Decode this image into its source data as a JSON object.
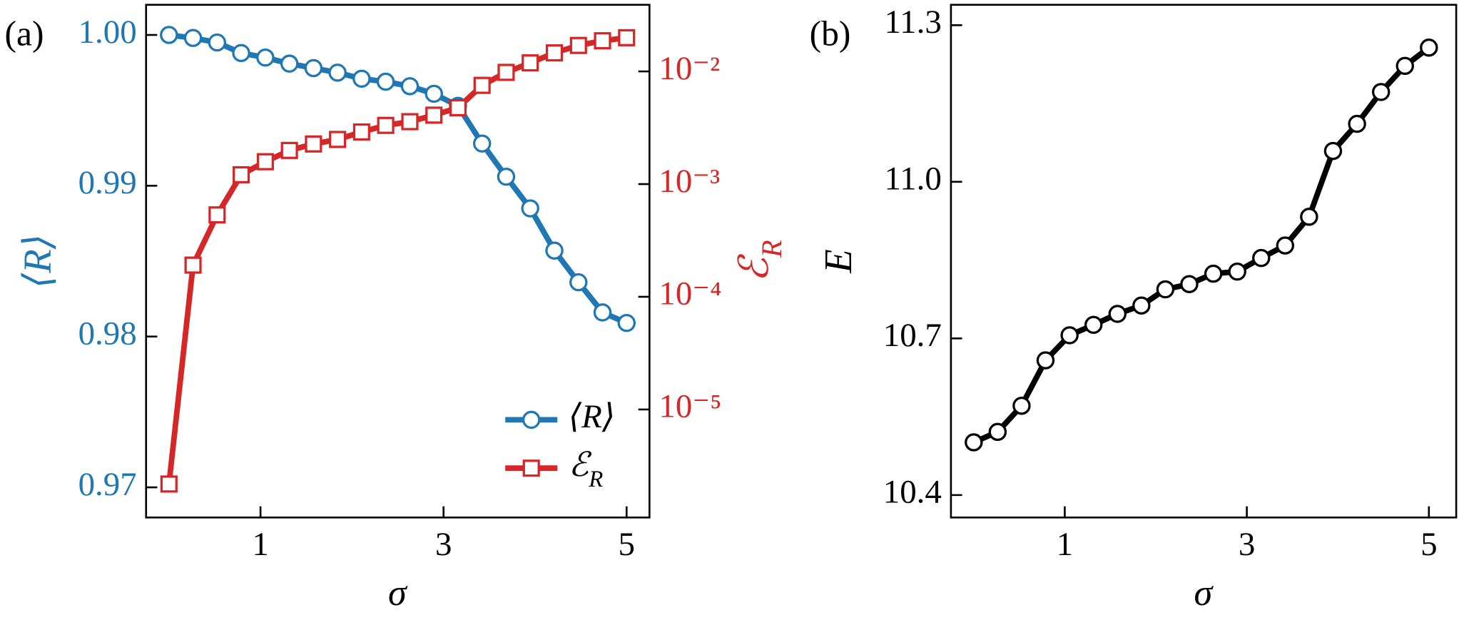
{
  "chart_data": [
    {
      "type": "line",
      "panel_label": "(a)",
      "xlabel": "σ",
      "ylabel": "⟨R⟩",
      "y2label": "ℰR",
      "x": [
        0,
        0.263,
        0.526,
        0.789,
        1.053,
        1.316,
        1.579,
        1.842,
        2.105,
        2.368,
        2.632,
        2.895,
        3.158,
        3.421,
        3.684,
        3.947,
        4.211,
        4.474,
        4.737,
        5
      ],
      "xlim": [
        -0.25,
        5.25
      ],
      "xticks": [
        1,
        3,
        5
      ],
      "ylim": [
        0.968,
        1.002
      ],
      "yticks": [
        0.97,
        0.98,
        0.99,
        {
          "value": 1,
          "label": "1.00"
        }
      ],
      "y2scale": "log",
      "y2lim": [
        1.1e-06,
        0.039
      ],
      "y2ticks": [
        {
          "value": 1e-05,
          "label": "10⁻⁵"
        },
        {
          "value": 0.0001,
          "label": "10⁻⁴"
        },
        {
          "value": 0.001,
          "label": "10⁻³"
        },
        {
          "value": 0.01,
          "label": "10⁻²"
        }
      ],
      "legend": "lower right",
      "series": [
        {
          "name": "⟨R⟩",
          "color": "#1f77b4",
          "marker": "circle",
          "values": [
            1.0,
            0.9998,
            0.9995,
            0.9988,
            0.9985,
            0.9981,
            0.9978,
            0.9975,
            0.9971,
            0.9969,
            0.9966,
            0.9961,
            0.9953,
            0.9928,
            0.9906,
            0.9885,
            0.9857,
            0.9836,
            0.9816,
            0.9809
          ]
        },
        {
          "name": "ℰR",
          "color": "#d62728",
          "marker": "square",
          "axis": "y2",
          "values": [
            2.18e-06,
            0.000191,
            0.000533,
            0.00121,
            0.00158,
            0.00199,
            0.00227,
            0.00249,
            0.0029,
            0.00332,
            0.00358,
            0.00409,
            0.00476,
            0.00752,
            0.0098,
            0.0119,
            0.0146,
            0.017,
            0.0187,
            0.0199
          ]
        }
      ]
    },
    {
      "type": "line",
      "panel_label": "(b)",
      "xlabel": "σ",
      "ylabel": "E",
      "x": [
        0,
        0.263,
        0.526,
        0.789,
        1.053,
        1.316,
        1.579,
        1.842,
        2.105,
        2.368,
        2.632,
        2.895,
        3.158,
        3.421,
        3.684,
        3.947,
        4.211,
        4.474,
        4.737,
        5
      ],
      "xlim": [
        -0.25,
        5.3
      ],
      "xticks": [
        1,
        3,
        5
      ],
      "ylim": [
        10.357,
        11.339
      ],
      "yticks": [
        10.4,
        10.7,
        {
          "value": 11,
          "label": "11.0"
        },
        11.3
      ],
      "color": "#000000",
      "marker": "circle",
      "values": [
        10.501,
        10.521,
        10.571,
        10.658,
        10.706,
        10.726,
        10.747,
        10.763,
        10.794,
        10.804,
        10.824,
        10.828,
        10.854,
        10.878,
        10.933,
        11.059,
        11.111,
        11.172,
        11.222,
        11.257
      ]
    }
  ]
}
